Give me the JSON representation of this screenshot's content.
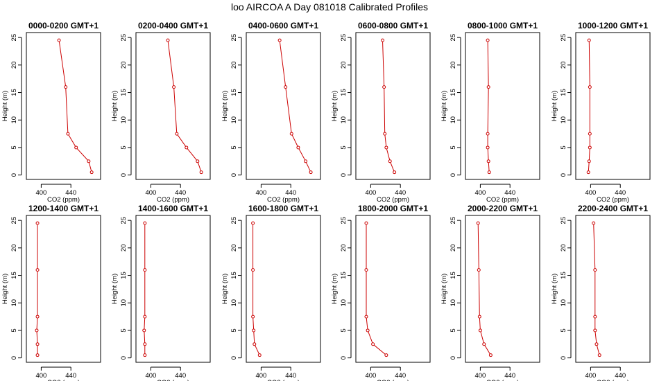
{
  "figure": {
    "title": "loo AIRCOA A  Day 081018  Calibrated Profiles"
  },
  "chart_data": {
    "type": "line",
    "xlabel": "CO2 (ppm)",
    "ylabel": "Height (m)",
    "xlim": [
      380,
      480
    ],
    "ylim": [
      0,
      25
    ],
    "xticks": [
      400,
      440
    ],
    "yticks": [
      0,
      5,
      10,
      15,
      20,
      25
    ],
    "grid": false,
    "line_color": "#cc0000",
    "panels": [
      {
        "title": "0000-0200 GMT+1",
        "points": [
          [
            424,
            24.5
          ],
          [
            433,
            16
          ],
          [
            436,
            7.5
          ],
          [
            447,
            5
          ],
          [
            464,
            2.5
          ],
          [
            468,
            0.5
          ]
        ]
      },
      {
        "title": "0200-0400 GMT+1",
        "points": [
          [
            423,
            24.5
          ],
          [
            431,
            16
          ],
          [
            435,
            7.5
          ],
          [
            448,
            5
          ],
          [
            463,
            2.5
          ],
          [
            468,
            0.5
          ]
        ]
      },
      {
        "title": "0400-0600 GMT+1",
        "points": [
          [
            425,
            24.5
          ],
          [
            433,
            16
          ],
          [
            441,
            7.5
          ],
          [
            450,
            5
          ],
          [
            460,
            2.5
          ],
          [
            467,
            0.5
          ]
        ]
      },
      {
        "title": "0600-0800 GMT+1",
        "points": [
          [
            416,
            24.5
          ],
          [
            418,
            16
          ],
          [
            419,
            7.5
          ],
          [
            421,
            5
          ],
          [
            426,
            2.5
          ],
          [
            432,
            0.5
          ]
        ]
      },
      {
        "title": "0800-1000 GMT+1",
        "points": [
          [
            410,
            24.5
          ],
          [
            411,
            16
          ],
          [
            410,
            7.5
          ],
          [
            410,
            5
          ],
          [
            411,
            2.5
          ],
          [
            412,
            0.5
          ]
        ]
      },
      {
        "title": "1000-1200 GMT+1",
        "points": [
          [
            398,
            24.5
          ],
          [
            399,
            16
          ],
          [
            399,
            7.5
          ],
          [
            399,
            5
          ],
          [
            398,
            2.5
          ],
          [
            397,
            0.5
          ]
        ]
      },
      {
        "title": "1200-1400 GMT+1",
        "points": [
          [
            395,
            24.5
          ],
          [
            395,
            16
          ],
          [
            395,
            7.5
          ],
          [
            394,
            5
          ],
          [
            395,
            2.5
          ],
          [
            395,
            0.5
          ]
        ]
      },
      {
        "title": "1400-1600 GMT+1",
        "points": [
          [
            392,
            24.5
          ],
          [
            392,
            16
          ],
          [
            392,
            7.5
          ],
          [
            391,
            5
          ],
          [
            392,
            2.5
          ],
          [
            392,
            0.5
          ]
        ]
      },
      {
        "title": "1600-1800 GMT+1",
        "points": [
          [
            389,
            24.5
          ],
          [
            389,
            16
          ],
          [
            389,
            7.5
          ],
          [
            390,
            5
          ],
          [
            391,
            2.5
          ],
          [
            398,
            0.5
          ]
        ]
      },
      {
        "title": "1800-2000 GMT+1",
        "points": [
          [
            394,
            24.5
          ],
          [
            394,
            16
          ],
          [
            394,
            7.5
          ],
          [
            396,
            5
          ],
          [
            403,
            2.5
          ],
          [
            421,
            0.5
          ]
        ]
      },
      {
        "title": "2000-2200 GMT+1",
        "points": [
          [
            397,
            24.5
          ],
          [
            398,
            16
          ],
          [
            399,
            7.5
          ],
          [
            400,
            5
          ],
          [
            405,
            2.5
          ],
          [
            414,
            0.5
          ]
        ]
      },
      {
        "title": "2200-2400 GMT+1",
        "points": [
          [
            404,
            24.5
          ],
          [
            406,
            16
          ],
          [
            406,
            7.5
          ],
          [
            406,
            5
          ],
          [
            408,
            2.5
          ],
          [
            412,
            0.5
          ]
        ]
      }
    ]
  }
}
